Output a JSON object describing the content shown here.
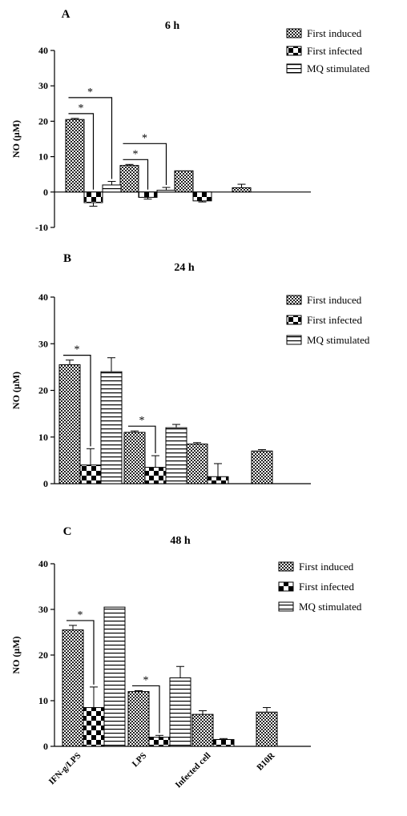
{
  "figure": {
    "categories": [
      "IFN-g/LPS",
      "LPS",
      "Infected cell",
      "B10R"
    ],
    "legend": [
      "First induced",
      "First infected",
      "MQ stimulated"
    ],
    "ylabel": "NO (μM)"
  },
  "chart_data": [
    {
      "type": "bar",
      "panel": "A",
      "title": "6 h",
      "ylabel": "NO (μM)",
      "ylim": [
        -10,
        40
      ],
      "yticks": [
        -10,
        0,
        10,
        20,
        30,
        40
      ],
      "categories": [
        "IFN-g/LPS",
        "LPS",
        "Infected cell",
        "B10R"
      ],
      "show_category_labels": false,
      "series": [
        {
          "name": "First induced",
          "pattern": "checker",
          "values": [
            20.5,
            7.5,
            6.0,
            1.2
          ],
          "errors": [
            0.3,
            0.3,
            0,
            1.0
          ]
        },
        {
          "name": "First infected",
          "pattern": "checker-large",
          "values": [
            -3.0,
            -1.5,
            -2.5,
            null
          ],
          "errors": [
            1.0,
            0.5,
            0.3,
            null
          ]
        },
        {
          "name": "MQ stimulated",
          "pattern": "hlines",
          "values": [
            2.0,
            0.5,
            null,
            null
          ],
          "errors": [
            1.0,
            0.8,
            null,
            null
          ]
        }
      ],
      "significance": [
        {
          "from": [
            0,
            0
          ],
          "to": [
            0,
            1
          ],
          "label": "*"
        },
        {
          "from": [
            0,
            0
          ],
          "to": [
            0,
            2
          ],
          "label": "*"
        },
        {
          "from": [
            1,
            0
          ],
          "to": [
            1,
            1
          ],
          "label": "*"
        },
        {
          "from": [
            1,
            0
          ],
          "to": [
            1,
            2
          ],
          "label": "*"
        }
      ],
      "legend_position": "top-right"
    },
    {
      "type": "bar",
      "panel": "B",
      "title": "24 h",
      "ylabel": "NO (μM)",
      "ylim": [
        0,
        40
      ],
      "yticks": [
        0,
        10,
        20,
        30,
        40
      ],
      "categories": [
        "IFN-g/LPS",
        "LPS",
        "Infected cell",
        "B10R"
      ],
      "show_category_labels": false,
      "series": [
        {
          "name": "First induced",
          "pattern": "checker",
          "values": [
            25.5,
            11.0,
            8.5,
            7.0
          ],
          "errors": [
            1.0,
            0.3,
            0.3,
            0.3
          ]
        },
        {
          "name": "First infected",
          "pattern": "checker-large",
          "values": [
            4.0,
            3.5,
            1.5,
            null
          ],
          "errors": [
            3.5,
            2.5,
            2.8,
            null
          ]
        },
        {
          "name": "MQ stimulated",
          "pattern": "hlines",
          "values": [
            24.0,
            12.0,
            null,
            null
          ],
          "errors": [
            3.0,
            0.7,
            null,
            null
          ]
        }
      ],
      "significance": [
        {
          "from": [
            0,
            0
          ],
          "to": [
            0,
            1
          ],
          "label": "*"
        },
        {
          "from": [
            1,
            0
          ],
          "to": [
            1,
            1
          ],
          "label": "*"
        }
      ],
      "legend_position": "top-right"
    },
    {
      "type": "bar",
      "panel": "C",
      "title": "48 h",
      "ylabel": "NO (μM)",
      "ylim": [
        0,
        40
      ],
      "yticks": [
        0,
        10,
        20,
        30,
        40
      ],
      "categories": [
        "IFN-g/LPS",
        "LPS",
        "Infected cell",
        "B10R"
      ],
      "show_category_labels": true,
      "series": [
        {
          "name": "First induced",
          "pattern": "checker",
          "values": [
            25.5,
            12.0,
            7.0,
            7.5
          ],
          "errors": [
            1.0,
            0.2,
            0.8,
            1.0
          ]
        },
        {
          "name": "First infected",
          "pattern": "checker-large",
          "values": [
            8.5,
            2.0,
            1.5,
            null
          ],
          "errors": [
            4.5,
            0.4,
            0.2,
            null
          ]
        },
        {
          "name": "MQ stimulated",
          "pattern": "hlines",
          "values": [
            30.5,
            15.0,
            null,
            null
          ],
          "errors": [
            0,
            2.5,
            null,
            null
          ]
        }
      ],
      "significance": [
        {
          "from": [
            0,
            0
          ],
          "to": [
            0,
            1
          ],
          "label": "*"
        },
        {
          "from": [
            1,
            0
          ],
          "to": [
            1,
            1
          ],
          "label": "*"
        }
      ],
      "legend_position": "top-right"
    }
  ]
}
